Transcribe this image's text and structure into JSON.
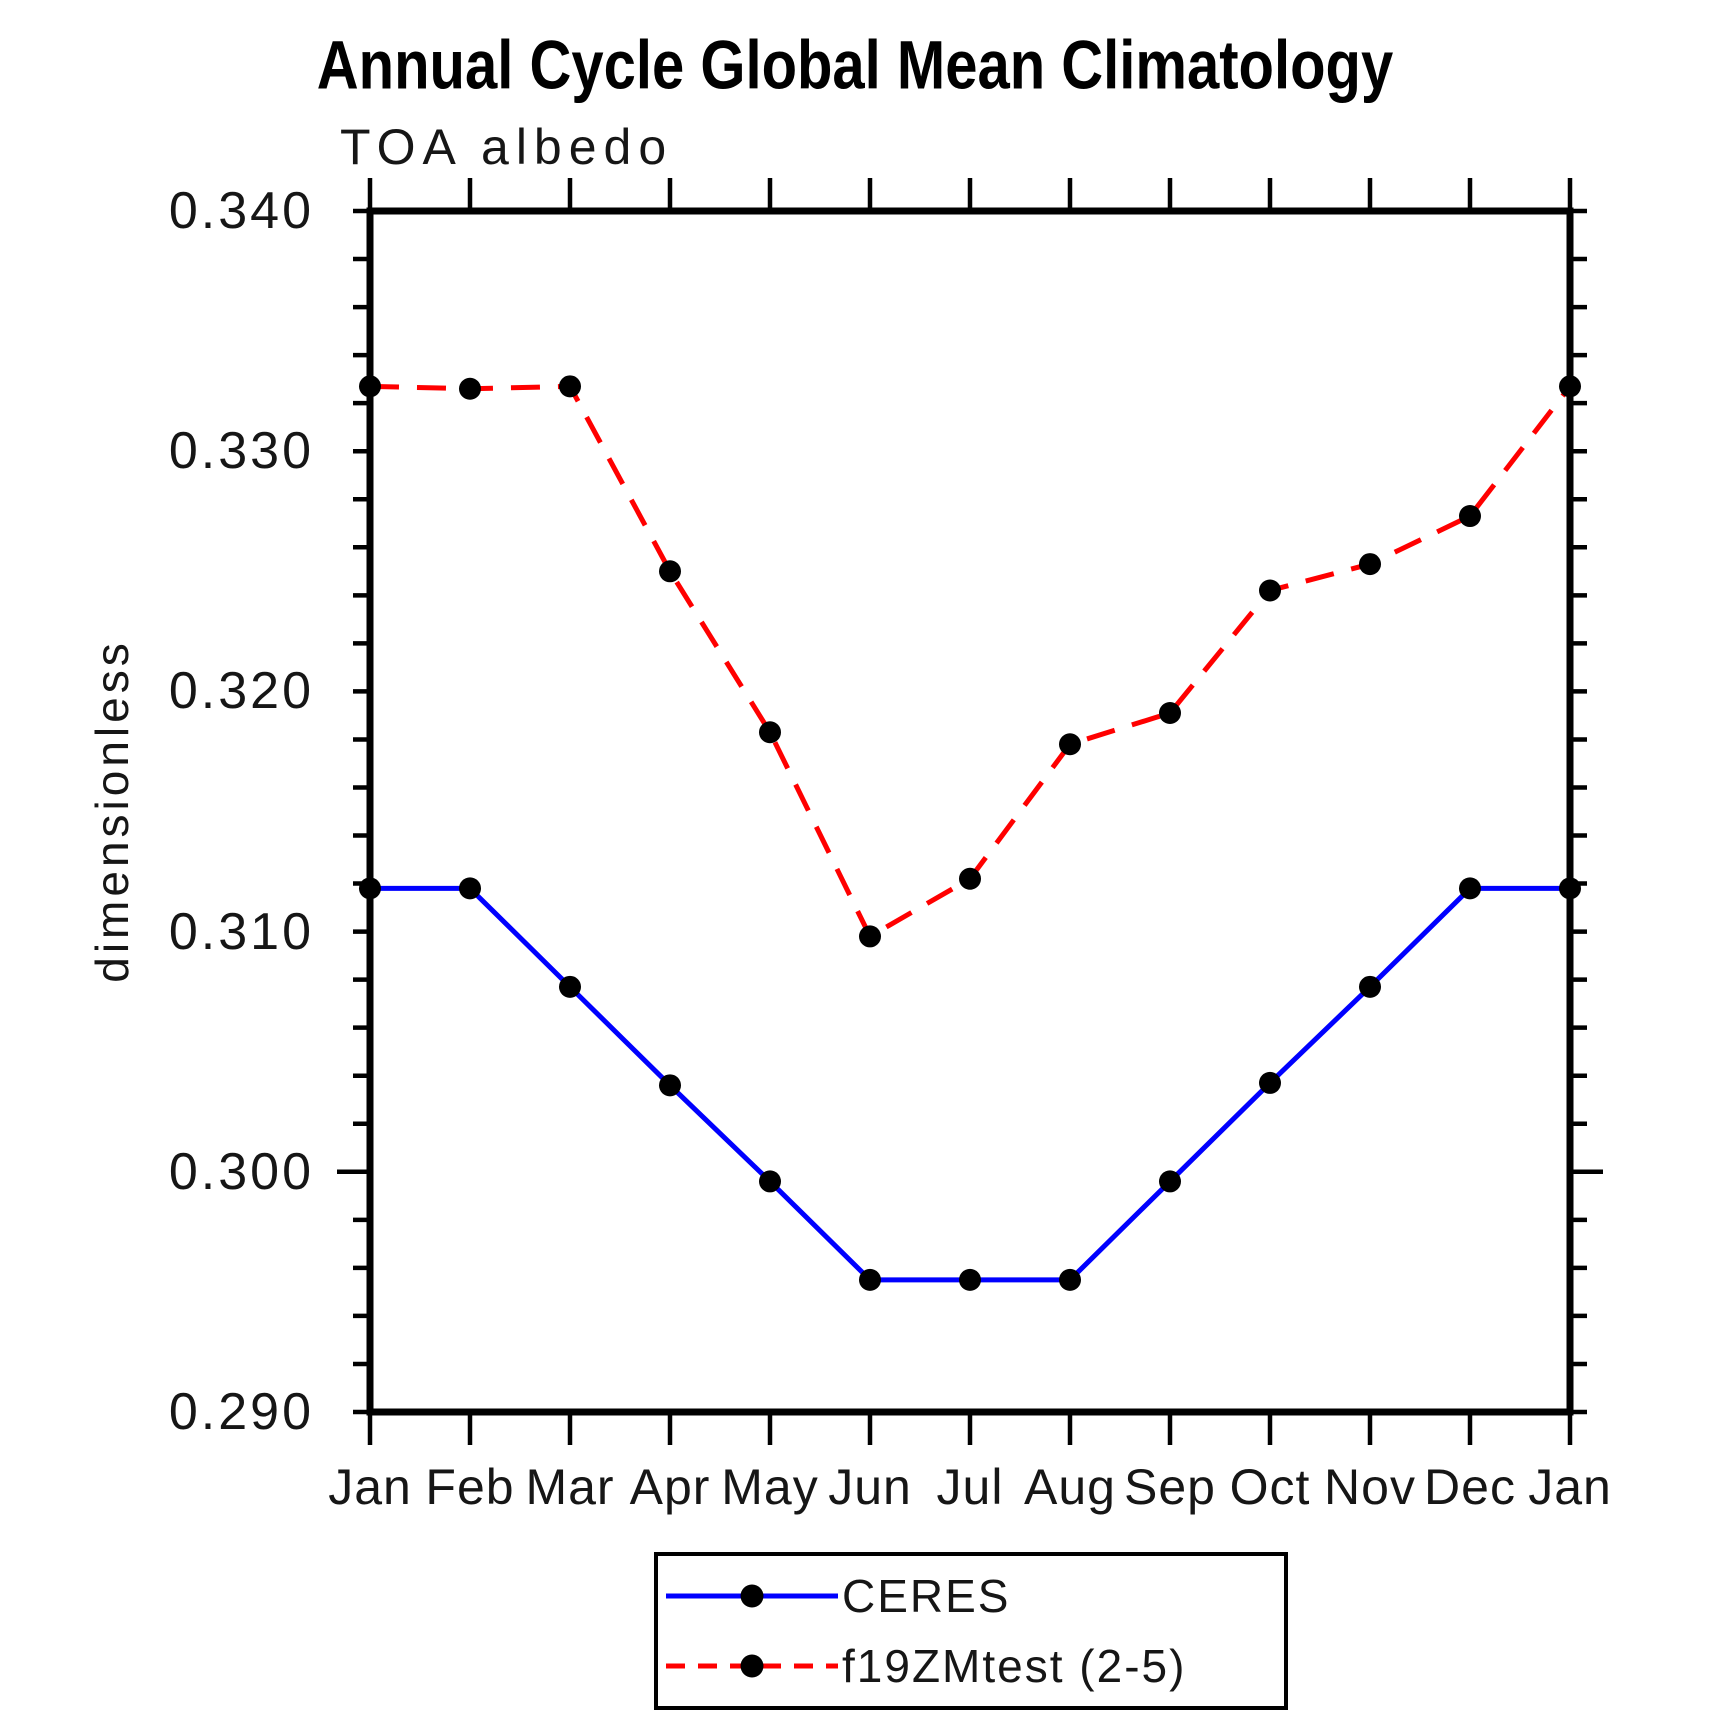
{
  "title": "Annual Cycle Global Mean Climatology",
  "subtitle": "TOA albedo",
  "legend": {
    "entries": [
      {
        "label": "CERES",
        "color": "#0000ff",
        "line_style": "solid",
        "marker": "filled-circle"
      },
      {
        "label": "f19ZMtest (2-5)",
        "color": "#ff0000",
        "line_style": "dashed",
        "marker": "filled-circle"
      }
    ]
  },
  "chart_data": {
    "type": "line",
    "title": "Annual Cycle Global Mean Climatology",
    "subtitle": "TOA albedo",
    "xlabel": "",
    "ylabel": "dimensionless",
    "categories": [
      "Jan",
      "Feb",
      "Mar",
      "Apr",
      "May",
      "Jun",
      "Jul",
      "Aug",
      "Sep",
      "Oct",
      "Nov",
      "Dec",
      "Jan"
    ],
    "series": [
      {
        "name": "CERES",
        "color": "#0000ff",
        "style": "solid",
        "marker": "filled-circle",
        "marker_color": "#000000",
        "values": [
          0.3118,
          0.3118,
          0.3077,
          0.3036,
          0.2996,
          0.2955,
          0.2955,
          0.2955,
          0.2996,
          0.3037,
          0.3077,
          0.3118,
          0.3118
        ]
      },
      {
        "name": "f19ZMtest (2-5)",
        "color": "#ff0000",
        "style": "dashed",
        "marker": "filled-circle",
        "marker_color": "#000000",
        "values": [
          0.3327,
          0.3326,
          0.3327,
          0.325,
          0.3183,
          0.3098,
          0.3122,
          0.3178,
          0.3191,
          0.3242,
          0.3253,
          0.3273,
          0.3327
        ]
      }
    ],
    "ylim": [
      0.29,
      0.34
    ],
    "ytick_major_step": 0.01,
    "ytick_minor_step": 0.002,
    "ytick_labels": [
      "0.340",
      "0.330",
      "0.320",
      "0.310",
      "0.300",
      "0.290"
    ],
    "grid": false,
    "legend_position": "bottom-center",
    "frame_color": "#000000"
  }
}
